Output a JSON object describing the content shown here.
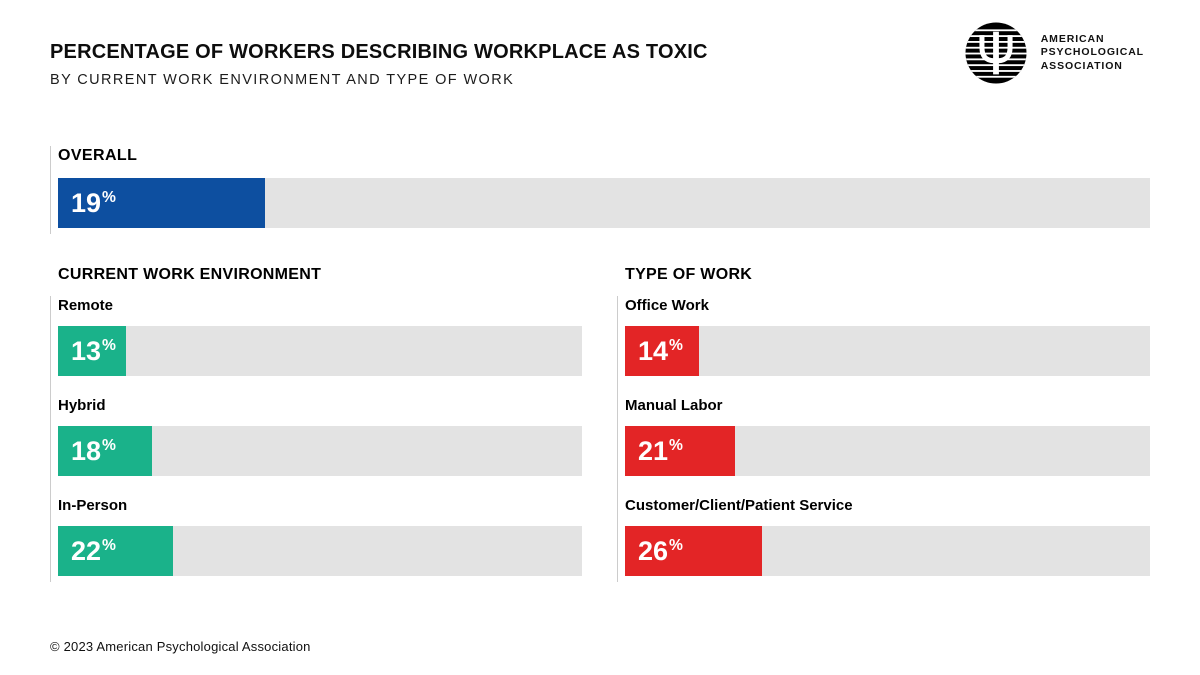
{
  "header": {
    "title": "PERCENTAGE OF WORKERS DESCRIBING WORKPLACE AS TOXIC",
    "subtitle": "BY CURRENT WORK ENVIRONMENT AND TYPE OF WORK"
  },
  "logo": {
    "lines": [
      "AMERICAN",
      "PSYCHOLOGICAL",
      "ASSOCIATION"
    ]
  },
  "colors": {
    "overall_bar": "#0d4fa0",
    "environment_bar": "#1ab28a",
    "work_type_bar": "#e32526",
    "track": "#e3e3e3",
    "rule": "#cccccc"
  },
  "percent_sign": "%",
  "overall": {
    "label": "OVERALL",
    "value": 19
  },
  "environment": {
    "heading": "CURRENT WORK ENVIRONMENT",
    "rows": [
      {
        "label": "Remote",
        "value": 13
      },
      {
        "label": "Hybrid",
        "value": 18
      },
      {
        "label": "In-Person",
        "value": 22
      }
    ]
  },
  "work_type": {
    "heading": "TYPE OF WORK",
    "rows": [
      {
        "label": "Office Work",
        "value": 14
      },
      {
        "label": "Manual Labor",
        "value": 21
      },
      {
        "label": "Customer/Client/Patient Service",
        "value": 26
      }
    ]
  },
  "footer": {
    "copyright": "© 2023 American Psychological Association"
  },
  "chart_data": {
    "type": "bar",
    "orientation": "horizontal",
    "title": "PERCENTAGE OF WORKERS DESCRIBING WORKPLACE AS TOXIC",
    "subtitle": "BY CURRENT WORK ENVIRONMENT AND TYPE OF WORK",
    "unit": "percent",
    "xlim": [
      0,
      100
    ],
    "grid": false,
    "legend": false,
    "value_labels": "inside-start",
    "series": [
      {
        "name": "Overall",
        "categories": [
          "Overall"
        ],
        "values": [
          19
        ],
        "color": "#0d4fa0"
      },
      {
        "name": "Current Work Environment",
        "categories": [
          "Remote",
          "Hybrid",
          "In-Person"
        ],
        "values": [
          13,
          18,
          22
        ],
        "color": "#1ab28a"
      },
      {
        "name": "Type of Work",
        "categories": [
          "Office Work",
          "Manual Labor",
          "Customer/Client/Patient Service"
        ],
        "values": [
          14,
          21,
          26
        ],
        "color": "#e32526"
      }
    ]
  }
}
